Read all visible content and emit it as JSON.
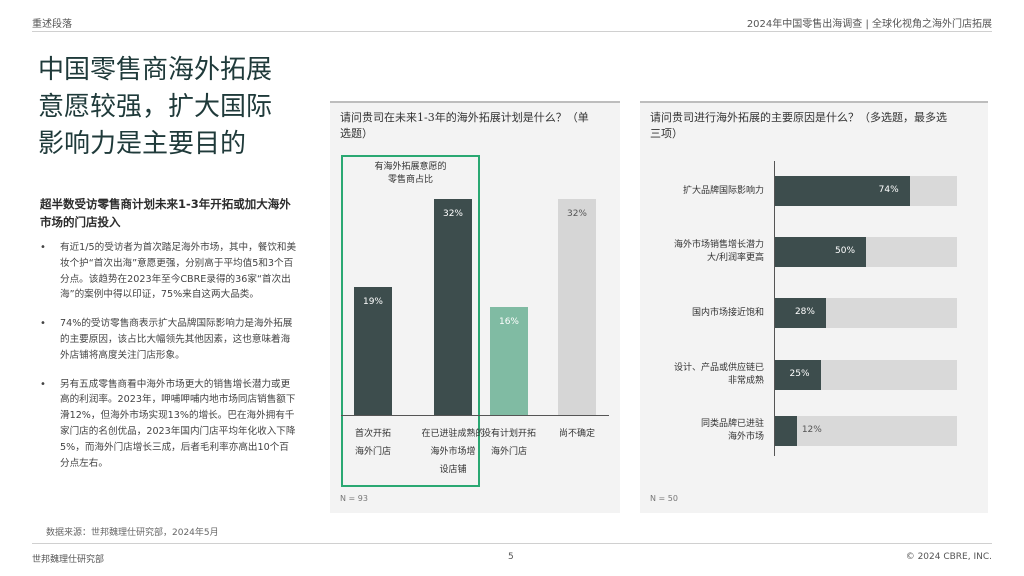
{
  "header": {
    "left": "重述段落",
    "right": "2024年中国零售出海调查 | 全球化视角之海外门店拓展"
  },
  "title_lines": [
    "中国零售商海外拓展",
    "意愿较强，扩大国际",
    "影响力是主要目的"
  ],
  "subhead": "超半数受访零售商计划未来1-3年开拓或加大海外市场的门店投入",
  "bullets": [
    "有近1/5的受访者为首次踏足海外市场，其中，餐饮和美妆个护“首次出海”意愿更强，分别高于平均值5和3个百分点。该趋势在2023年至今CBRE录得的36家“首次出海”的案例中得以印证，75%来自这两大品类。",
    "74%的受访零售商表示扩大品牌国际影响力是海外拓展的主要原因，该占比大幅领先其他因素，这也意味着海外店铺将高度关注门店形象。",
    "另有五成零售商看中海外市场更大的销售增长潜力或更高的利润率。2023年，呷哺呷哺内地市场同店销售额下滑12%，但海外市场实现13%的增长。巴在海外拥有千家门店的名创优品，2023年国内门店平均年化收入下降5%，而海外门店增长三成，后者毛利率亦高出10个百分点左右。"
  ],
  "source": "数据来源：世邦魏理仕研究部，2024年5月",
  "footer": {
    "left": "世邦魏理仕研究部",
    "page": "5",
    "right": "© 2024 CBRE, INC."
  },
  "chart_data": [
    {
      "type": "bar",
      "title": "请问贵司在未来1-3年的海外拓展计划是什么？（单选题）",
      "categories": [
        [
          "首次开拓",
          "海外门店"
        ],
        [
          "在已进驻成熟的",
          "海外市场增",
          "设店铺"
        ],
        [
          "没有计划开拓",
          "海外门店"
        ],
        [
          "尚不确定"
        ]
      ],
      "values": [
        19,
        32,
        16,
        32
      ],
      "value_labels": [
        "19%",
        "32%",
        "16%",
        "32%"
      ],
      "colors": [
        "#3d4d4d",
        "#3d4d4d",
        "#80bba3",
        "#d6d6d6"
      ],
      "label_colors": [
        "#ffffff",
        "#ffffff",
        "#ffffff",
        "#555555"
      ],
      "ylim": [
        0,
        40
      ],
      "callout_label": [
        "有海外拓展意愿的",
        "零售商占比"
      ],
      "n_label": "N = 93"
    },
    {
      "type": "bar",
      "orientation": "horizontal",
      "title": "请问贵司进行海外拓展的主要原因是什么？（多选题，最多选三项）",
      "categories": [
        [
          "扩大品牌国际影响力"
        ],
        [
          "海外市场销售增长潜力",
          "大/利润率更高"
        ],
        [
          "国内市场接近饱和"
        ],
        [
          "设计、产品或供应链已",
          "非常成熟"
        ],
        [
          "同类品牌已进驻",
          "海外市场"
        ]
      ],
      "values": [
        74,
        50,
        28,
        25,
        12
      ],
      "value_labels": [
        "74%",
        "50%",
        "28%",
        "25%",
        "12%"
      ],
      "xlim": [
        0,
        100
      ],
      "bar_color": "#3d4d4d",
      "track_color": "#d9d9d9",
      "n_label": "N = 50"
    }
  ]
}
